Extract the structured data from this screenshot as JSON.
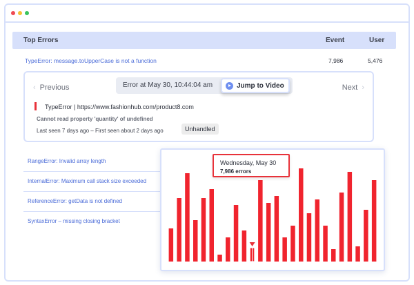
{
  "window": {
    "colors": {
      "accent": "#d7e0fb",
      "link": "#4a6bd8",
      "error_red": "#e8323a"
    }
  },
  "table": {
    "headers": {
      "errors": "Top Errors",
      "event": "Event",
      "user": "User"
    },
    "top_row": {
      "error": "TypeError: message.toUpperCase is not a function",
      "event": "7,986",
      "user": "5,476"
    }
  },
  "detail": {
    "previous": "Previous",
    "next": "Next",
    "error_at": "Error at May 30, 10:44:04 am",
    "jump_label": "Jump to Video",
    "type_line": "TypeError  |  https://www.fashionhub.com/product8.com",
    "message": "Cannot read property 'quantity' of undefined",
    "seen": "Last seen 7 days ago – First seen about 2 days ago",
    "badge": "Unhandled"
  },
  "errors": [
    "RangeError: Invalid array length",
    "InternalError: Maximum call stack size exceeded",
    "ReferenceError: getData is not defined",
    "SyntaxError – missing closing bracket"
  ],
  "tooltip": {
    "date": "Wednesday, May 30",
    "value": "7,986 errors"
  },
  "chart_data": {
    "type": "bar",
    "title": "",
    "xlabel": "",
    "ylabel": "",
    "color": "#f0242e",
    "highlight_index": 10,
    "ylim": [
      0,
      140
    ],
    "values": [
      48,
      92,
      128,
      60,
      92,
      105,
      10,
      35,
      82,
      45,
      20,
      118,
      85,
      95,
      35,
      52,
      135,
      70,
      90,
      52,
      18,
      100,
      130,
      22,
      75,
      118
    ]
  }
}
